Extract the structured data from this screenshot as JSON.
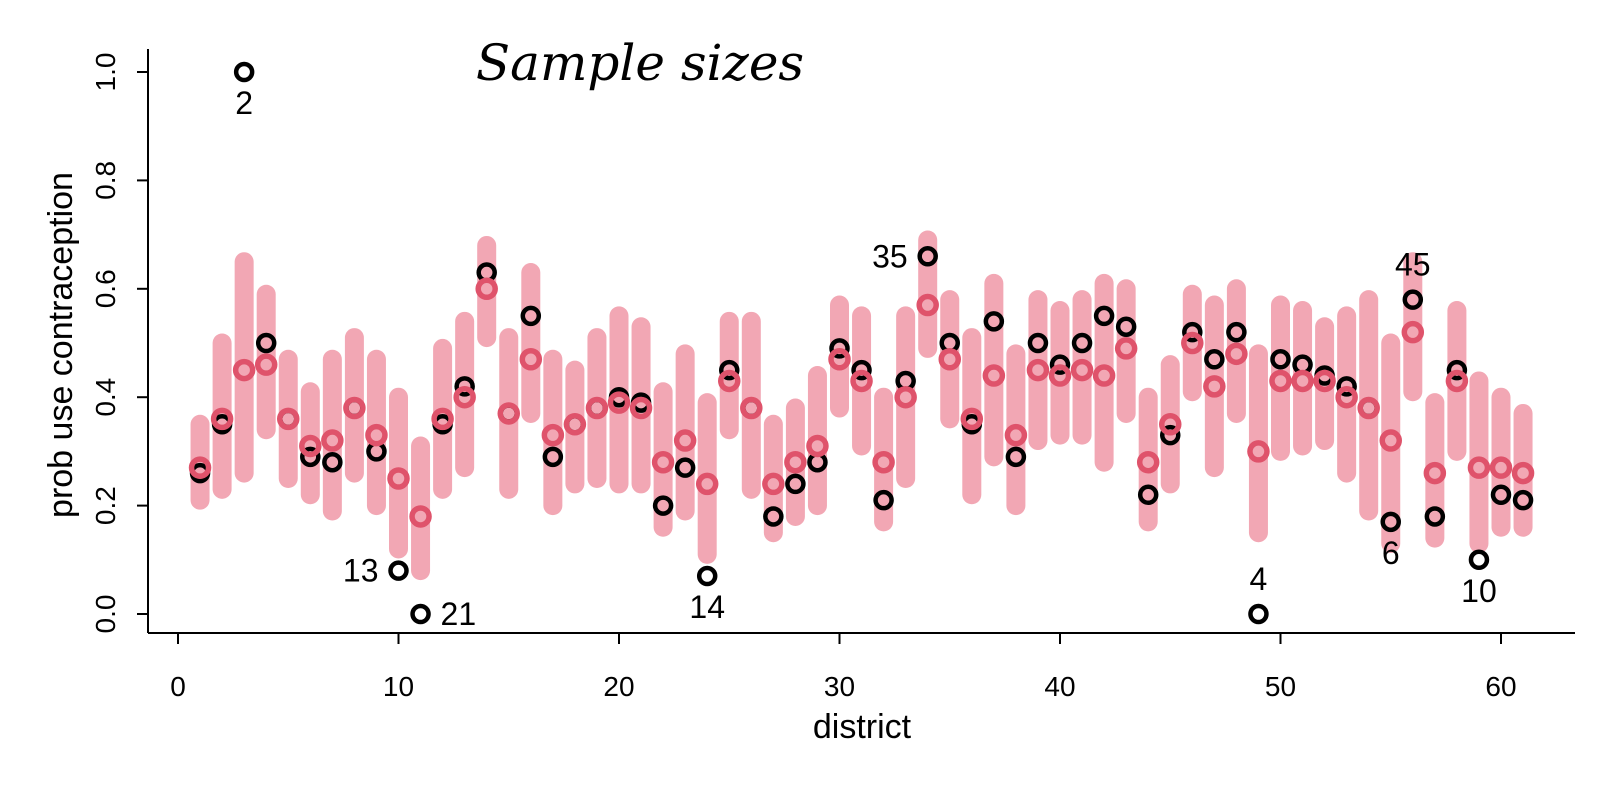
{
  "chart_data": {
    "type": "scatter",
    "title": "Sample sizes",
    "xlabel": "district",
    "ylabel": "prob use contraception",
    "xlim": [
      0,
      63
    ],
    "ylim": [
      0,
      1.0
    ],
    "x_ticks": [
      0,
      10,
      20,
      30,
      40,
      50,
      60
    ],
    "y_ticks": [
      0.0,
      0.2,
      0.4,
      0.6,
      0.8,
      1.0
    ],
    "x_tick_labels": [
      "0",
      "10",
      "20",
      "30",
      "40",
      "50",
      "60"
    ],
    "y_tick_labels": [
      "0.0",
      "0.2",
      "0.4",
      "0.6",
      "0.8",
      "1.0"
    ],
    "grid": false,
    "colors": {
      "observed": "#000000",
      "estimate": "#df536b",
      "interval": "#f2a7b4"
    },
    "series": [
      {
        "name": "observed",
        "points": [
          [
            1,
            0.26
          ],
          [
            2,
            0.35
          ],
          [
            3,
            1.0
          ],
          [
            4,
            0.5
          ],
          [
            5,
            0.36
          ],
          [
            6,
            0.29
          ],
          [
            7,
            0.28
          ],
          [
            8,
            0.38
          ],
          [
            9,
            0.3
          ],
          [
            10,
            0.08
          ],
          [
            11,
            0.0
          ],
          [
            12,
            0.35
          ],
          [
            13,
            0.42
          ],
          [
            14,
            0.63
          ],
          [
            15,
            0.37
          ],
          [
            16,
            0.55
          ],
          [
            17,
            0.29
          ],
          [
            18,
            0.35
          ],
          [
            19,
            0.38
          ],
          [
            20,
            0.4
          ],
          [
            21,
            0.39
          ],
          [
            22,
            0.2
          ],
          [
            23,
            0.27
          ],
          [
            24,
            0.07
          ],
          [
            25,
            0.45
          ],
          [
            26,
            0.38
          ],
          [
            27,
            0.18
          ],
          [
            28,
            0.24
          ],
          [
            29,
            0.28
          ],
          [
            30,
            0.49
          ],
          [
            31,
            0.45
          ],
          [
            32,
            0.21
          ],
          [
            33,
            0.43
          ],
          [
            34,
            0.66
          ],
          [
            35,
            0.5
          ],
          [
            36,
            0.35
          ],
          [
            37,
            0.54
          ],
          [
            38,
            0.29
          ],
          [
            39,
            0.5
          ],
          [
            40,
            0.46
          ],
          [
            41,
            0.5
          ],
          [
            42,
            0.55
          ],
          [
            43,
            0.53
          ],
          [
            44,
            0.22
          ],
          [
            45,
            0.33
          ],
          [
            46,
            0.52
          ],
          [
            47,
            0.47
          ],
          [
            48,
            0.52
          ],
          [
            49,
            0.0
          ],
          [
            50,
            0.47
          ],
          [
            51,
            0.46
          ],
          [
            52,
            0.44
          ],
          [
            53,
            0.42
          ],
          [
            54,
            0.38
          ],
          [
            55,
            0.17
          ],
          [
            56,
            0.58
          ],
          [
            57,
            0.18
          ],
          [
            58,
            0.45
          ],
          [
            59,
            0.1
          ],
          [
            60,
            0.22
          ],
          [
            61,
            0.21
          ]
        ]
      },
      {
        "name": "estimate",
        "points": [
          [
            1,
            0.27,
            0.21,
            0.35
          ],
          [
            2,
            0.36,
            0.23,
            0.5
          ],
          [
            3,
            0.45,
            0.26,
            0.65
          ],
          [
            4,
            0.46,
            0.34,
            0.59
          ],
          [
            5,
            0.36,
            0.25,
            0.47
          ],
          [
            6,
            0.31,
            0.22,
            0.41
          ],
          [
            7,
            0.32,
            0.19,
            0.47
          ],
          [
            8,
            0.38,
            0.26,
            0.51
          ],
          [
            9,
            0.33,
            0.2,
            0.47
          ],
          [
            10,
            0.25,
            0.12,
            0.4
          ],
          [
            11,
            0.18,
            0.08,
            0.31
          ],
          [
            12,
            0.36,
            0.23,
            0.49
          ],
          [
            13,
            0.4,
            0.27,
            0.54
          ],
          [
            14,
            0.6,
            0.51,
            0.68
          ],
          [
            15,
            0.37,
            0.23,
            0.51
          ],
          [
            16,
            0.47,
            0.37,
            0.63
          ],
          [
            17,
            0.33,
            0.2,
            0.47
          ],
          [
            18,
            0.35,
            0.24,
            0.45
          ],
          [
            19,
            0.38,
            0.25,
            0.51
          ],
          [
            20,
            0.39,
            0.24,
            0.55
          ],
          [
            21,
            0.38,
            0.24,
            0.53
          ],
          [
            22,
            0.28,
            0.16,
            0.41
          ],
          [
            23,
            0.32,
            0.19,
            0.48
          ],
          [
            24,
            0.24,
            0.11,
            0.39
          ],
          [
            25,
            0.43,
            0.34,
            0.54
          ],
          [
            26,
            0.38,
            0.23,
            0.54
          ],
          [
            27,
            0.24,
            0.15,
            0.35
          ],
          [
            28,
            0.28,
            0.18,
            0.38
          ],
          [
            29,
            0.31,
            0.2,
            0.44
          ],
          [
            30,
            0.47,
            0.38,
            0.57
          ],
          [
            31,
            0.43,
            0.31,
            0.55
          ],
          [
            32,
            0.28,
            0.17,
            0.4
          ],
          [
            33,
            0.4,
            0.25,
            0.55
          ],
          [
            34,
            0.57,
            0.49,
            0.69
          ],
          [
            35,
            0.47,
            0.36,
            0.58
          ],
          [
            36,
            0.36,
            0.22,
            0.51
          ],
          [
            37,
            0.44,
            0.29,
            0.61
          ],
          [
            38,
            0.33,
            0.2,
            0.48
          ],
          [
            39,
            0.45,
            0.32,
            0.58
          ],
          [
            40,
            0.44,
            0.33,
            0.56
          ],
          [
            41,
            0.45,
            0.33,
            0.58
          ],
          [
            42,
            0.44,
            0.28,
            0.61
          ],
          [
            43,
            0.49,
            0.37,
            0.6
          ],
          [
            44,
            0.28,
            0.17,
            0.4
          ],
          [
            45,
            0.35,
            0.24,
            0.46
          ],
          [
            46,
            0.5,
            0.41,
            0.59
          ],
          [
            47,
            0.42,
            0.27,
            0.57
          ],
          [
            48,
            0.48,
            0.37,
            0.6
          ],
          [
            49,
            0.3,
            0.15,
            0.48
          ],
          [
            50,
            0.43,
            0.3,
            0.57
          ],
          [
            51,
            0.43,
            0.31,
            0.56
          ],
          [
            52,
            0.43,
            0.32,
            0.53
          ],
          [
            53,
            0.4,
            0.26,
            0.55
          ],
          [
            54,
            0.38,
            0.19,
            0.58
          ],
          [
            55,
            0.32,
            0.13,
            0.5
          ],
          [
            56,
            0.52,
            0.41,
            0.65
          ],
          [
            57,
            0.26,
            0.14,
            0.39
          ],
          [
            58,
            0.43,
            0.3,
            0.56
          ],
          [
            59,
            0.27,
            0.13,
            0.43
          ],
          [
            60,
            0.27,
            0.16,
            0.4
          ],
          [
            61,
            0.26,
            0.16,
            0.37
          ]
        ]
      }
    ],
    "annotations": [
      {
        "text": "2",
        "x": 3,
        "y": 1.0,
        "pos": "below"
      },
      {
        "text": "13",
        "x": 10,
        "y": 0.08,
        "pos": "left"
      },
      {
        "text": "21",
        "x": 11,
        "y": 0.0,
        "pos": "right"
      },
      {
        "text": "14",
        "x": 24,
        "y": 0.07,
        "pos": "below"
      },
      {
        "text": "35",
        "x": 34,
        "y": 0.66,
        "pos": "left"
      },
      {
        "text": "4",
        "x": 49,
        "y": 0.0,
        "pos": "above"
      },
      {
        "text": "6",
        "x": 55,
        "y": 0.17,
        "pos": "below"
      },
      {
        "text": "45",
        "x": 56,
        "y": 0.58,
        "pos": "above"
      },
      {
        "text": "10",
        "x": 59,
        "y": 0.1,
        "pos": "below"
      }
    ]
  }
}
